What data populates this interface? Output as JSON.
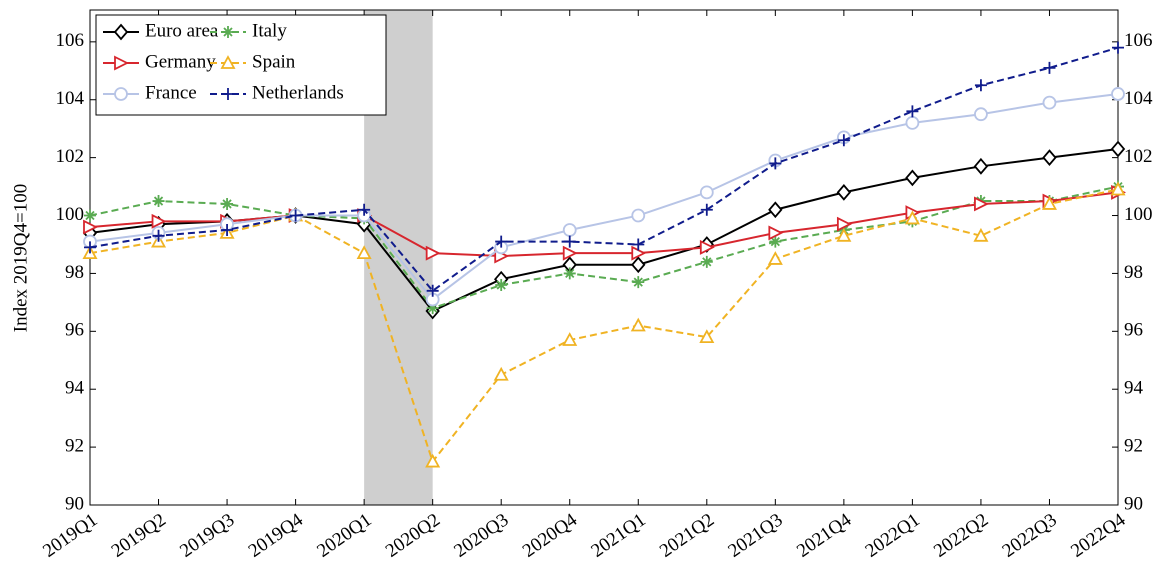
{
  "chart_data": {
    "type": "line",
    "y_label": "Index 2019Q4=100",
    "categories": [
      "2019Q1",
      "2019Q2",
      "2019Q3",
      "2019Q4",
      "2020Q1",
      "2020Q2",
      "2020Q3",
      "2020Q4",
      "2021Q1",
      "2021Q2",
      "2021Q3",
      "2021Q4",
      "2022Q1",
      "2022Q2",
      "2022Q3",
      "2022Q4"
    ],
    "series": [
      {
        "name": "Euro area",
        "color": "#000000",
        "marker": "diamond",
        "dashed": false,
        "values": [
          99.4,
          99.7,
          99.8,
          100.0,
          99.7,
          96.7,
          97.8,
          98.3,
          98.3,
          99.0,
          100.2,
          100.8,
          101.3,
          101.7,
          102.0,
          102.3
        ]
      },
      {
        "name": "Italy",
        "color": "#5aab52",
        "marker": "asterisk",
        "dashed": true,
        "values": [
          100.0,
          100.5,
          100.4,
          100.0,
          99.9,
          96.8,
          97.6,
          98.0,
          97.7,
          98.4,
          99.1,
          99.5,
          99.8,
          100.5,
          100.5,
          101.0
        ]
      },
      {
        "name": "Germany",
        "color": "#d7262e",
        "marker": "triangle-right",
        "dashed": false,
        "values": [
          99.6,
          99.8,
          99.8,
          100.0,
          100.0,
          98.7,
          98.6,
          98.7,
          98.7,
          98.9,
          99.4,
          99.7,
          100.1,
          100.4,
          100.5,
          100.8
        ]
      },
      {
        "name": "Spain",
        "color": "#f0b323",
        "marker": "triangle-up",
        "dashed": true,
        "values": [
          98.7,
          99.1,
          99.4,
          100.0,
          98.7,
          91.5,
          94.5,
          95.7,
          96.2,
          95.8,
          98.5,
          99.3,
          99.9,
          99.3,
          100.4,
          100.9
        ]
      },
      {
        "name": "France",
        "color": "#b7c4e6",
        "marker": "circle",
        "dashed": false,
        "values": [
          99.1,
          99.4,
          99.7,
          100.0,
          100.0,
          97.1,
          98.9,
          99.5,
          100.0,
          100.8,
          101.9,
          102.7,
          103.2,
          103.5,
          103.9,
          104.2
        ]
      },
      {
        "name": "Netherlands",
        "color": "#101c8c",
        "marker": "plus",
        "dashed": true,
        "values": [
          98.9,
          99.3,
          99.5,
          100.0,
          100.2,
          97.4,
          99.1,
          99.1,
          99.0,
          100.2,
          101.8,
          102.6,
          103.6,
          104.5,
          105.1,
          105.8
        ]
      }
    ],
    "shaded": [
      "2020Q1",
      "2020Q2"
    ],
    "ylim": [
      90,
      107.1
    ],
    "yticks": [
      90,
      92,
      94,
      96,
      98,
      100,
      102,
      104,
      106
    ],
    "right_axis_labels": true,
    "legend": "upper left",
    "grid": false
  }
}
